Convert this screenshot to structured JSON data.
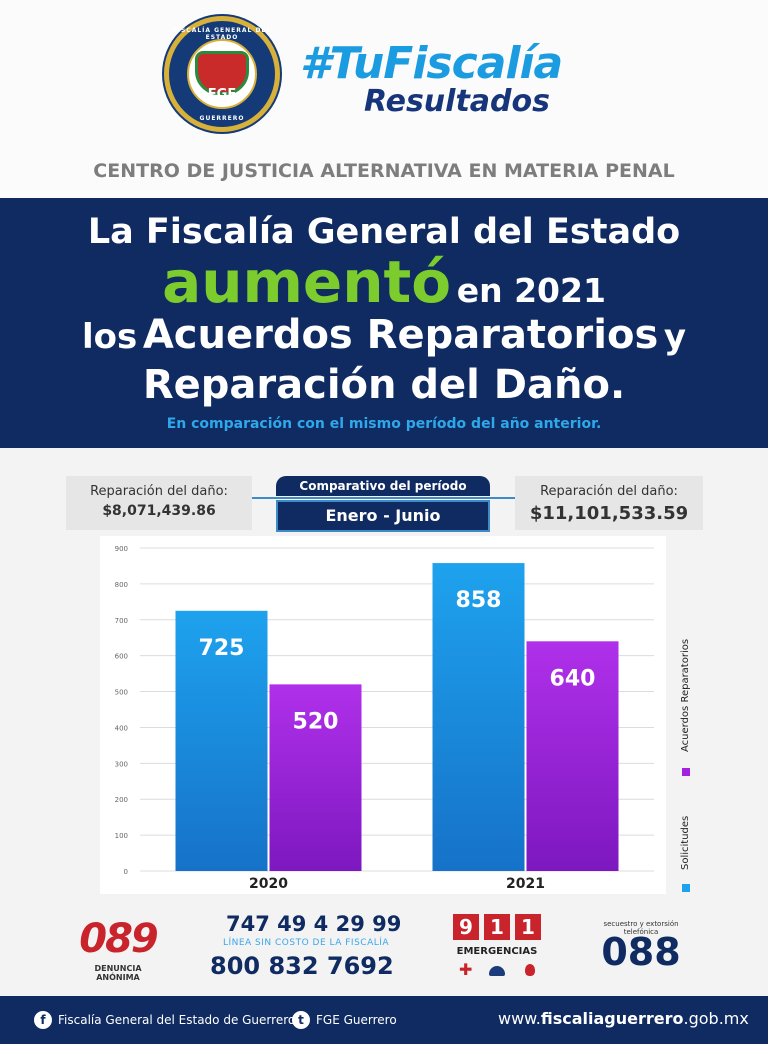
{
  "header": {
    "seal_text_top": "FISCALÍA GENERAL DEL ESTADO",
    "seal_initials": "FGE",
    "seal_text_bottom": "GUERRERO",
    "hashtag": "#TuFiscalía",
    "subtitle": "Resultados",
    "section_title": "CENTRO DE JUSTICIA ALTERNATIVA EN MATERIA PENAL"
  },
  "banner": {
    "line1": "La Fiscalía General del Estado",
    "line2_highlight": "aumentó",
    "line2_rest": "en 2021",
    "line3_prefix": "los",
    "line3_main": "Acuerdos Reparatorios",
    "line3_suffix": "y",
    "line4": "Reparación del Daño.",
    "note": "En comparación con el mismo período del año anterior.",
    "highlight_color": "#7ccc2d"
  },
  "comparison": {
    "left_label": "Reparación del daño:",
    "left_value": "$8,071,439.86",
    "period_label": "Comparativo del período",
    "period_value": "Enero - Junio",
    "right_label": "Reparación del daño:",
    "right_value": "$11,101,533.59"
  },
  "chart_data": {
    "type": "bar",
    "categories": [
      "2020",
      "2021"
    ],
    "series": [
      {
        "name": "Solicitudes",
        "values": [
          725,
          858
        ],
        "color": "#1ea2ee"
      },
      {
        "name": "Acuerdos Reparatorios",
        "values": [
          520,
          640
        ],
        "color": "#a222e0"
      }
    ],
    "ylim": [
      0,
      900
    ],
    "yticks": [
      0,
      100,
      200,
      300,
      400,
      500,
      600,
      700,
      800,
      900
    ],
    "grid": true,
    "legend_placement": "right",
    "title": "",
    "xlabel": "",
    "ylabel": ""
  },
  "contact": {
    "denuncia_number": "089",
    "denuncia_label": "DENUNCIA ANÓNIMA",
    "phone1": "747 49 4 29 99",
    "line_label": "LÍNEA SIN COSTO DE LA FISCALÍA",
    "phone2": "800 832 7692",
    "emergency_digits": [
      "9",
      "1",
      "1"
    ],
    "emergency_label": "EMERGENCIAS",
    "extortion_label": "secuestro y extorsión telefónica",
    "extortion_number": "088"
  },
  "footer": {
    "facebook_icon": "facebook-icon",
    "facebook_label": "Fiscalía General del Estado de Guerrero",
    "twitter_icon": "twitter-icon",
    "twitter_label": "FGE Guerrero",
    "web_prefix": "www.",
    "web_domain": "fiscaliaguerrero",
    "web_suffix": ".gob.mx"
  }
}
